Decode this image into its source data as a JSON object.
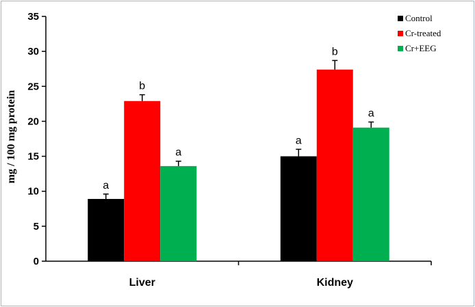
{
  "chart_data": {
    "type": "bar",
    "title": "",
    "xlabel": "",
    "ylabel": "mg / 100 mg protein",
    "ylim": [
      0,
      35
    ],
    "yticks": [
      0,
      5,
      10,
      15,
      20,
      25,
      30,
      35
    ],
    "grid": false,
    "legend_position": "top-right",
    "categories": [
      "Liver",
      "Kidney"
    ],
    "series": [
      {
        "name": "Control",
        "color": "#000000",
        "values": [
          8.9,
          15.0
        ],
        "errors": [
          0.7,
          1.0
        ],
        "labels": [
          "a",
          "a"
        ]
      },
      {
        "name": "Cr-treated",
        "color": "#ff0000",
        "values": [
          22.9,
          27.4
        ],
        "errors": [
          0.9,
          1.3
        ],
        "labels": [
          "b",
          "b"
        ]
      },
      {
        "name": "Cr+EEG",
        "color": "#00b050",
        "values": [
          13.6,
          19.1
        ],
        "errors": [
          0.7,
          0.8
        ],
        "labels": [
          "a",
          "a"
        ]
      }
    ]
  }
}
